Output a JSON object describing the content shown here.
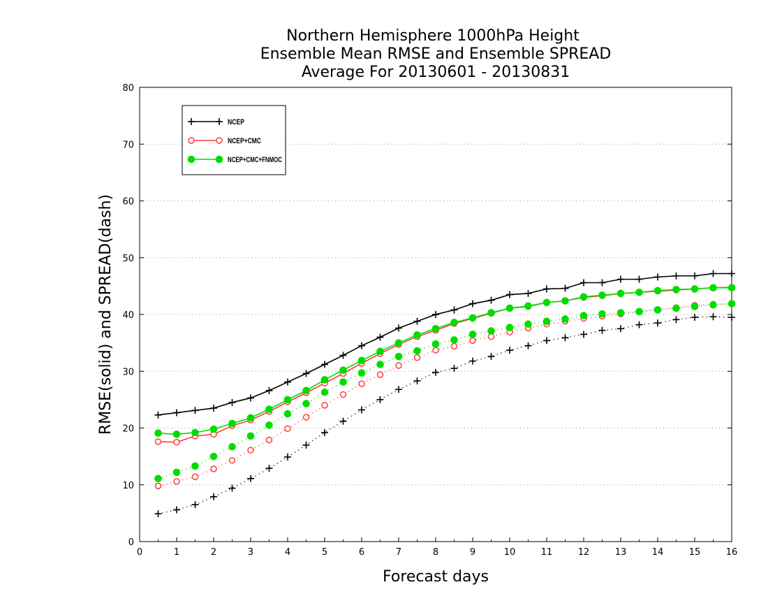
{
  "chart_data": {
    "type": "line",
    "title": [
      "Northern Hemisphere 1000hPa Height",
      "Ensemble Mean RMSE and Ensemble SPREAD",
      "Average For 20130601 - 20130831"
    ],
    "xlabel": "Forecast days",
    "ylabel": "RMSE(solid) and SPREAD(dash)",
    "xlim": [
      0,
      16
    ],
    "ylim": [
      0,
      80
    ],
    "xticks": [
      0,
      1,
      2,
      3,
      4,
      5,
      6,
      7,
      8,
      9,
      10,
      11,
      12,
      13,
      14,
      15,
      16
    ],
    "yticks": [
      0,
      10,
      20,
      30,
      40,
      50,
      60,
      70,
      80
    ],
    "grid": "horizontal dotted",
    "legend_position": "top-left",
    "x": [
      0.5,
      1,
      1.5,
      2,
      2.5,
      3,
      3.5,
      4,
      4.5,
      5,
      5.5,
      6,
      6.5,
      7,
      7.5,
      8,
      8.5,
      9,
      9.5,
      10,
      10.5,
      11,
      11.5,
      12,
      12.5,
      13,
      13.5,
      14,
      14.5,
      15,
      15.5,
      16
    ],
    "series": [
      {
        "name": "NCEP",
        "color": "#000000",
        "marker": "plus",
        "rmse": [
          22.3,
          22.7,
          23.1,
          23.5,
          24.5,
          25.3,
          26.6,
          28.1,
          29.6,
          31.2,
          32.8,
          34.5,
          36.0,
          37.6,
          38.8,
          40.0,
          40.8,
          41.9,
          42.5,
          43.5,
          43.7,
          44.5,
          44.6,
          45.6,
          45.6,
          46.2,
          46.2,
          46.6,
          46.8,
          46.8,
          47.2,
          47.2
        ],
        "spread": [
          4.9,
          5.6,
          6.5,
          7.9,
          9.4,
          11.1,
          12.9,
          14.9,
          17.0,
          19.2,
          21.2,
          23.2,
          25.0,
          26.8,
          28.3,
          29.8,
          30.5,
          31.8,
          32.6,
          33.7,
          34.5,
          35.4,
          35.9,
          36.5,
          37.2,
          37.5,
          38.2,
          38.5,
          39.1,
          39.5,
          39.6,
          39.5
        ]
      },
      {
        "name": "NCEP+CMC",
        "color": "#ff3b3b",
        "marker": "open-circle",
        "rmse": [
          17.6,
          17.5,
          18.6,
          18.9,
          20.4,
          21.4,
          22.9,
          24.6,
          26.2,
          27.9,
          29.6,
          31.4,
          33.1,
          34.7,
          36.1,
          37.2,
          38.4,
          39.3,
          40.2,
          41.1,
          41.4,
          42.1,
          42.4,
          43.0,
          43.3,
          43.7,
          43.9,
          44.1,
          44.3,
          44.5,
          44.7,
          44.8
        ],
        "spread": [
          9.8,
          10.6,
          11.4,
          12.8,
          14.3,
          16.1,
          17.9,
          19.9,
          21.9,
          24.0,
          25.9,
          27.8,
          29.4,
          31.0,
          32.4,
          33.7,
          34.4,
          35.4,
          36.1,
          36.9,
          37.6,
          38.3,
          38.8,
          39.3,
          39.7,
          40.1,
          40.5,
          40.9,
          41.2,
          41.6,
          41.8,
          41.9
        ]
      },
      {
        "name": "NCEP+CMC+FNMOC",
        "color": "#00dd00",
        "marker": "filled-circle",
        "rmse": [
          19.1,
          18.9,
          19.2,
          19.8,
          20.8,
          21.8,
          23.3,
          25.0,
          26.6,
          28.5,
          30.2,
          31.9,
          33.5,
          35.0,
          36.4,
          37.5,
          38.6,
          39.4,
          40.3,
          41.1,
          41.5,
          42.1,
          42.4,
          43.1,
          43.4,
          43.7,
          43.9,
          44.2,
          44.4,
          44.5,
          44.7,
          44.7
        ],
        "spread": [
          11.1,
          12.2,
          13.3,
          15.0,
          16.7,
          18.6,
          20.5,
          22.5,
          24.3,
          26.3,
          28.1,
          29.7,
          31.2,
          32.6,
          33.6,
          34.8,
          35.5,
          36.5,
          37.1,
          37.7,
          38.3,
          38.8,
          39.2,
          39.8,
          40.1,
          40.3,
          40.5,
          40.8,
          41.1,
          41.4,
          41.7,
          41.9
        ]
      }
    ]
  }
}
